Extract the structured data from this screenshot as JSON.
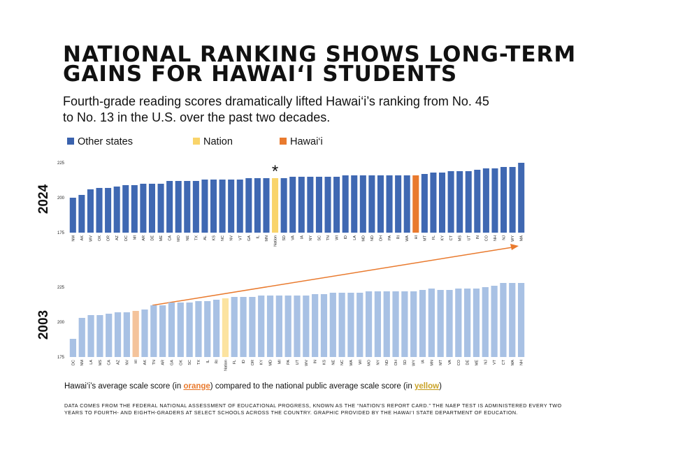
{
  "title": [
    "NATIONAL RANKING SHOWS LONG-TERM",
    "GAINS FOR HAWAI‘I STUDENTS"
  ],
  "subtitle": [
    "Fourth-grade reading scores dramatically lifted Hawai‘i’s ranking from No. 45",
    "to No. 13 in the U.S. over the past two decades."
  ],
  "legend": [
    {
      "name": "Other states",
      "color": "#3a62ad"
    },
    {
      "name": "Nation",
      "color": "#f9d46a"
    },
    {
      "name": "Hawai‘i",
      "color": "#e97a2e"
    }
  ],
  "chart_data": [
    {
      "type": "bar",
      "y_label": "2024",
      "categories": [
        "NM",
        "AK",
        "WV",
        "OK",
        "OR",
        "AZ",
        "DC",
        "MI",
        "AR",
        "DE",
        "ME",
        "CA",
        "MO",
        "NE",
        "TX",
        "AL",
        "KS",
        "NC",
        "NV",
        "VT",
        "GA",
        "IL",
        "MN",
        "Nation",
        "SD",
        "VA",
        "IA",
        "NY",
        "SC",
        "TN",
        "WI",
        "ID",
        "LA",
        "MD",
        "ND",
        "OH",
        "PA",
        "RI",
        "WA",
        "HI",
        "MT",
        "FL",
        "KY",
        "CT",
        "MS",
        "UT",
        "IN",
        "CO",
        "NH",
        "NJ",
        "WY",
        "MA"
      ],
      "values": [
        200,
        202,
        206,
        207,
        207,
        208,
        209,
        209,
        210,
        210,
        210,
        212,
        212,
        212,
        212,
        213,
        213,
        213,
        213,
        213,
        214,
        214,
        214,
        214,
        214,
        215,
        215,
        215,
        215,
        215,
        215,
        216,
        216,
        216,
        216,
        216,
        216,
        216,
        216,
        216,
        217,
        218,
        218,
        219,
        219,
        219,
        220,
        221,
        221,
        222,
        222,
        225
      ],
      "color": "#3f68b2",
      "highlight_colors": {
        "Nation": "#f9d46a",
        "HI": "#e97a2e"
      },
      "annotation": {
        "text": "*",
        "category": "Nation",
        "color": "#f6c54a"
      },
      "ylim": [
        175,
        230
      ],
      "yticks": [
        175,
        200,
        225
      ]
    },
    {
      "type": "bar",
      "y_label": "2003",
      "categories": [
        "DC",
        "NM",
        "LA",
        "MS",
        "CA",
        "AZ",
        "NV",
        "HI",
        "AK",
        "TN",
        "AR",
        "GA",
        "OK",
        "SC",
        "TX",
        "IL",
        "RI",
        "Nation",
        "FL",
        "ID",
        "OR",
        "KY",
        "MD",
        "MI",
        "PA",
        "UT",
        "WV",
        "IN",
        "KS",
        "NE",
        "NC",
        "WA",
        "WI",
        "MO",
        "NY",
        "ND",
        "OH",
        "SD",
        "WY",
        "IA",
        "MN",
        "MT",
        "VA",
        "CO",
        "DE",
        "ME",
        "NJ",
        "VT",
        "CT",
        "MA",
        "NH"
      ],
      "values": [
        188,
        203,
        205,
        205,
        206,
        207,
        207,
        208,
        209,
        212,
        212,
        214,
        214,
        214,
        215,
        215,
        216,
        217,
        218,
        218,
        218,
        219,
        219,
        219,
        219,
        219,
        219,
        220,
        220,
        221,
        221,
        221,
        221,
        222,
        222,
        222,
        222,
        222,
        222,
        223,
        224,
        223,
        223,
        224,
        224,
        224,
        225,
        226,
        228,
        228,
        228
      ],
      "color": "#a8c1e4",
      "highlight_colors": {
        "Nation": "#fce3a0",
        "HI": "#f4c39b"
      },
      "ylim": [
        175,
        230
      ],
      "yticks": [
        175,
        200,
        225
      ]
    }
  ],
  "caption": [
    {
      "text": "Hawai‘i’s average scale score (in "
    },
    {
      "text": "orange",
      "color": "#e97a2e"
    },
    {
      "text": ") compared to the national public average scale score (in "
    },
    {
      "text": "yellow",
      "color": "#c9a227"
    },
    {
      "text": ")"
    }
  ],
  "note": [
    "DATA COMES FROM THE FEDERAL NATIONAL ASSESSMENT OF EDUCATIONAL PROGRESS, KNOWN AS THE “NATION’S REPORT CARD.” THE NAEP TEST IS ADMINISTERED EVERY TWO",
    "YEARS TO FOURTH- AND EIGHTH-GRADERS AT SELECT SCHOOLS ACROSS THE COUNTRY. GRAPHIC PROVIDED BY THE HAWAI‘I STATE DEPARTMENT OF EDUCATION."
  ]
}
